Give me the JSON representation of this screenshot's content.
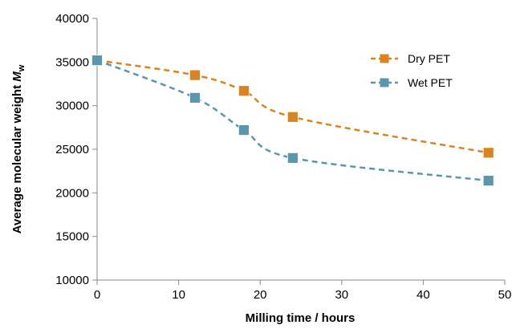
{
  "chart_data": {
    "type": "line",
    "title": "",
    "xlabel": "Milling time / hours",
    "ylabel_parts": {
      "text": "Average molecular weight ",
      "symbol": "M",
      "subscript": "w"
    },
    "xlim": [
      0,
      50
    ],
    "ylim": [
      10000,
      40000
    ],
    "xticks": [
      0,
      10,
      20,
      30,
      40,
      50
    ],
    "yticks": [
      10000,
      15000,
      20000,
      25000,
      30000,
      35000,
      40000
    ],
    "xtick_labels": [
      "0",
      "10",
      "20",
      "30",
      "40",
      "50"
    ],
    "ytick_labels": [
      "10000",
      "15000",
      "20000",
      "25000",
      "30000",
      "35000",
      "40000"
    ],
    "grid": false,
    "legend_position": "top-right",
    "series": [
      {
        "name": "Dry PET",
        "color": "#d9841f",
        "marker": "square",
        "line_style": "dashed",
        "x": [
          0,
          12,
          18,
          24,
          48
        ],
        "y": [
          35200,
          33500,
          31700,
          28700,
          24600
        ]
      },
      {
        "name": "Wet PET",
        "color": "#5a97ac",
        "marker": "square",
        "line_style": "dashed",
        "x": [
          0,
          12,
          18,
          24,
          48
        ],
        "y": [
          35200,
          30900,
          27200,
          24000,
          21400
        ]
      }
    ]
  }
}
